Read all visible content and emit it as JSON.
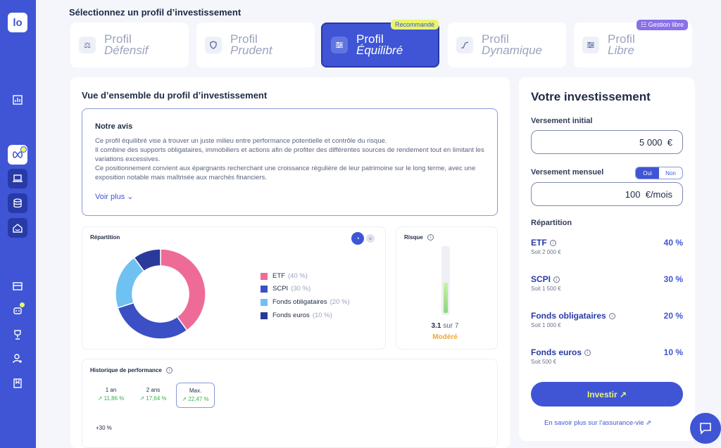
{
  "sidebar": {
    "logo": "lo",
    "icons": [
      "chart-icon",
      "infinity-icon",
      "laptop-icon",
      "database-icon",
      "house-icon",
      "inbox-icon",
      "robot-icon",
      "trophy-icon",
      "user-add-icon",
      "book-icon"
    ]
  },
  "header": {
    "title": "Sélectionnez un profil d’investissement"
  },
  "profiles": [
    {
      "line1": "Profil",
      "line2": "Défensif",
      "icon": "scale-icon"
    },
    {
      "line1": "Profil",
      "line2": "Prudent",
      "icon": "shield-icon"
    },
    {
      "line1": "Profil",
      "line2": "Équilibré",
      "icon": "sliders-icon",
      "badge": "Recommandé"
    },
    {
      "line1": "Profil",
      "line2": "Dynamique",
      "icon": "trend-icon"
    },
    {
      "line1": "Profil",
      "line2": "Libre",
      "icon": "sliders-icon",
      "badge": "Gestion libre"
    }
  ],
  "overview": {
    "title": "Vue d’ensemble du profil d’investissement",
    "avis_title": "Notre avis",
    "avis_lines": [
      "Ce profil équilibré vise à trouver un juste milieu entre performance potentielle et contrôle du risque.",
      "Il combine des supports obligataires, immobiliers et actions afin de profiter des différentes sources de rendement tout en limitant les variations excessives.",
      "Ce positionnement convient aux épargnants recherchant une croissance régulière de leur patrimoine sur le long terme, avec une exposition notable mais maîtrisée aux marchés financiers."
    ],
    "voir_plus": "Voir plus"
  },
  "repartition_card": {
    "title": "Répartition",
    "legend": [
      {
        "name": "ETF",
        "pct": "(40 %)"
      },
      {
        "name": "SCPI",
        "pct": "(30 %)"
      },
      {
        "name": "Fonds obligataires",
        "pct": "(20 %)"
      },
      {
        "name": "Fonds euros",
        "pct": "(10 %)"
      }
    ]
  },
  "chart_data": {
    "type": "pie",
    "title": "Répartition",
    "categories": [
      "ETF",
      "SCPI",
      "Fonds obligataires",
      "Fonds euros"
    ],
    "values": [
      40,
      30,
      20,
      10
    ],
    "colors": [
      "#ee6b97",
      "#3a50c4",
      "#6fc1f1",
      "#2a3a9a"
    ],
    "legend_position": "right"
  },
  "risk": {
    "title": "Risque",
    "value": "3.1",
    "max_text": "sur 7",
    "level_fraction": 0.443,
    "label": "Modéré",
    "label_color": "#f0a830"
  },
  "performance": {
    "title": "Historique de performance",
    "periods": [
      {
        "label": "1 an",
        "value": "↗ 11,86 %"
      },
      {
        "label": "2 ans",
        "value": "↗ 17,64 %"
      },
      {
        "label": "Max.",
        "value": "↗ 22,47 %"
      }
    ],
    "axis_label": "+30 %"
  },
  "investment": {
    "title": "Votre investissement",
    "initial_label": "Versement initial",
    "initial_value": "5 000  €",
    "monthly_label": "Versement mensuel",
    "monthly_yes": "Oui",
    "monthly_no": "Non",
    "monthly_value": "100  €/mois",
    "repartition_label": "Répartition",
    "items": [
      {
        "name": "ETF",
        "sub": "Soit 2 000 €",
        "pct": "40 %"
      },
      {
        "name": "SCPI",
        "sub": "Soit 1 500 €",
        "pct": "30 %"
      },
      {
        "name": "Fonds obligataires",
        "sub": "Soit 1 000 €",
        "pct": "20 %"
      },
      {
        "name": "Fonds euros",
        "sub": "Soit 500 €",
        "pct": "10 %"
      }
    ],
    "invest_button": "Investir ↗",
    "link": "En savoir plus sur l’assurance-vie"
  },
  "colors": {
    "primary": "#3f55d6",
    "accent": "#e9f56b",
    "libre": "#8a70e8"
  }
}
